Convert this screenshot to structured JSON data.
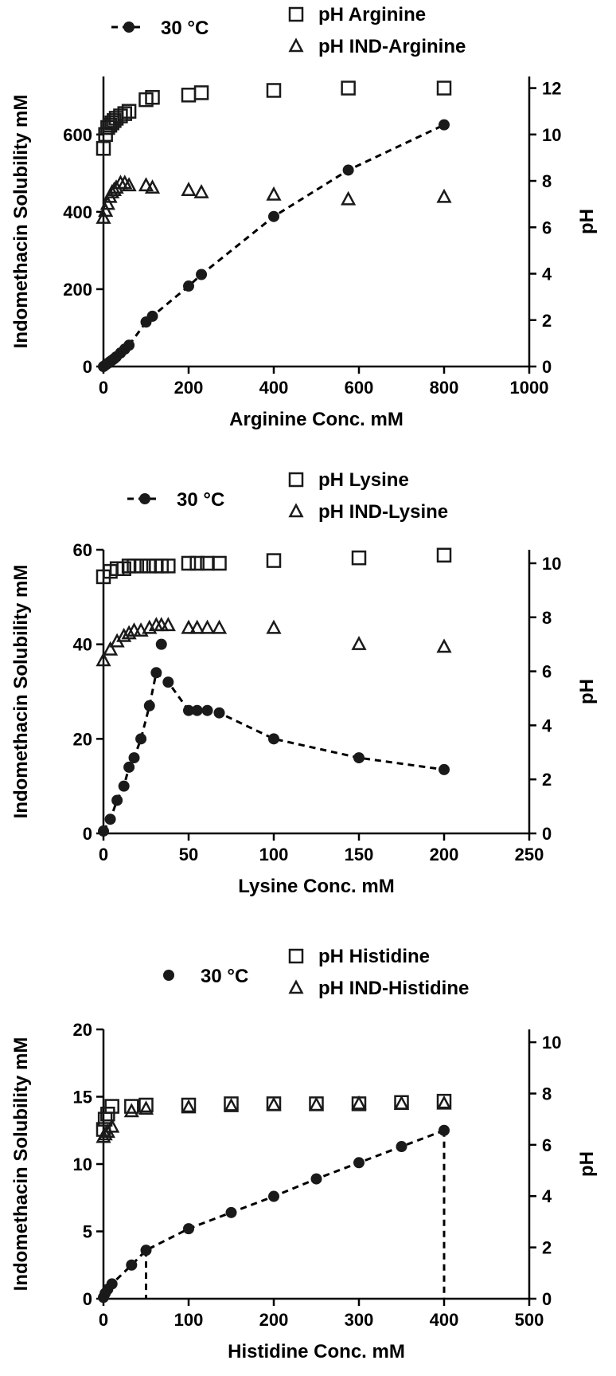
{
  "chart_data": [
    {
      "type": "scatter",
      "xlabel": "Arginine Conc. mM",
      "ylabel": "Indomethacin Solubility mM",
      "y2label": "pH",
      "xlim": [
        0,
        1000
      ],
      "ylim": [
        0,
        750
      ],
      "y2lim": [
        0,
        12.5
      ],
      "xticks": [
        "0",
        "200",
        "400",
        "600",
        "800",
        "1000"
      ],
      "yticks": [
        "0",
        "200",
        "400",
        "600"
      ],
      "y2ticks": [
        "0",
        "2",
        "4",
        "6",
        "8",
        "10",
        "12"
      ],
      "series": [
        {
          "name": "30 °C",
          "marker": "circle",
          "axis": "left",
          "fit_line": "dashed",
          "x": [
            0,
            5,
            10,
            15,
            20,
            25,
            30,
            40,
            50,
            60,
            100,
            115,
            200,
            230,
            400,
            575,
            800
          ],
          "y": [
            0,
            4,
            8,
            12,
            16,
            20,
            25,
            35,
            45,
            55,
            115,
            130,
            208,
            238,
            388,
            508,
            625
          ]
        },
        {
          "name": "pH Arginine",
          "marker": "square",
          "axis": "right",
          "x": [
            0,
            5,
            10,
            15,
            20,
            25,
            30,
            40,
            50,
            60,
            100,
            115,
            200,
            230,
            400,
            575,
            800
          ],
          "y": [
            9.4,
            10.0,
            10.3,
            10.4,
            10.5,
            10.6,
            10.7,
            10.8,
            10.9,
            11.0,
            11.5,
            11.6,
            11.7,
            11.8,
            11.9,
            12.0,
            12.0
          ]
        },
        {
          "name": "pH IND-Arginine",
          "marker": "triangle",
          "axis": "right",
          "x": [
            0,
            5,
            10,
            15,
            20,
            25,
            30,
            40,
            50,
            60,
            100,
            115,
            200,
            230,
            400,
            575,
            800
          ],
          "y": [
            6.4,
            6.7,
            7.0,
            7.3,
            7.5,
            7.6,
            7.7,
            7.9,
            7.9,
            7.8,
            7.8,
            7.7,
            7.6,
            7.5,
            7.4,
            7.2,
            7.3
          ]
        }
      ],
      "legend": {
        "markers": [
          "30 °C"
        ],
        "pH": [
          "pH Arginine",
          "pH IND-Arginine"
        ]
      }
    },
    {
      "type": "scatter",
      "xlabel": "Lysine Conc. mM",
      "ylabel": "Indomethacin Solubility mM",
      "y2label": "pH",
      "xlim": [
        0,
        250
      ],
      "ylim": [
        0,
        60
      ],
      "y2lim": [
        0,
        10.5
      ],
      "xticks": [
        "0",
        "50",
        "100",
        "150",
        "200",
        "250"
      ],
      "yticks": [
        "0",
        "20",
        "40",
        "60"
      ],
      "y2ticks": [
        "0",
        "2",
        "4",
        "6",
        "8",
        "10"
      ],
      "series": [
        {
          "name": "30 °C",
          "marker": "circle",
          "axis": "left",
          "fit_line": "dashed",
          "x": [
            0,
            4,
            8,
            12,
            15,
            18,
            22,
            27,
            31,
            34,
            38,
            50,
            55,
            61,
            68,
            100,
            150,
            200
          ],
          "y": [
            0.5,
            3,
            7,
            10,
            14,
            16,
            20,
            27,
            34,
            40,
            32,
            26,
            26,
            26,
            25.5,
            20,
            16,
            13.5
          ],
          "fit_y": [
            0.5,
            3,
            7,
            10,
            14,
            16,
            20,
            27,
            34,
            32,
            26,
            26,
            25.5,
            20,
            16,
            13.5
          ],
          "fit_x": [
            0,
            4,
            8,
            12,
            15,
            18,
            22,
            27,
            31,
            38,
            50,
            61,
            68,
            100,
            150,
            200
          ]
        },
        {
          "name": "pH Lysine",
          "marker": "square",
          "axis": "right",
          "x": [
            0,
            4,
            8,
            12,
            15,
            18,
            22,
            27,
            31,
            34,
            38,
            50,
            55,
            61,
            68,
            100,
            150,
            200
          ],
          "y": [
            9.5,
            9.7,
            9.8,
            9.8,
            9.9,
            9.9,
            9.9,
            9.9,
            9.9,
            9.9,
            9.9,
            10.0,
            10.0,
            10.0,
            10.0,
            10.1,
            10.2,
            10.3
          ],
          "fit_y": []
        },
        {
          "name": "pH IND-Lysine",
          "marker": "triangle",
          "axis": "right",
          "x": [
            0,
            4,
            8,
            12,
            15,
            18,
            22,
            27,
            31,
            34,
            38,
            50,
            55,
            61,
            68,
            100,
            150,
            200
          ],
          "y": [
            6.4,
            6.8,
            7.1,
            7.3,
            7.4,
            7.5,
            7.5,
            7.6,
            7.7,
            7.7,
            7.7,
            7.6,
            7.6,
            7.6,
            7.6,
            7.6,
            7.0,
            6.9
          ],
          "fit_y": []
        }
      ],
      "legend": {
        "markers": [
          "30 °C"
        ],
        "pH": [
          "pH Lysine",
          "pH IND-Lysine"
        ]
      }
    },
    {
      "type": "scatter",
      "xlabel": "Histidine Conc. mM",
      "ylabel": "Indomethacin Solubility mM",
      "y2label": "pH",
      "xlim": [
        0,
        500
      ],
      "ylim": [
        0,
        20
      ],
      "y2lim": [
        0,
        10.5
      ],
      "xticks": [
        "0",
        "100",
        "200",
        "300",
        "400",
        "500"
      ],
      "yticks": [
        "0",
        "5",
        "10",
        "15",
        "20"
      ],
      "y2ticks": [
        "0",
        "2",
        "4",
        "6",
        "8",
        "10"
      ],
      "series": [
        {
          "name": "30 °C",
          "marker": "circle",
          "axis": "left",
          "fit_line": "dashed",
          "x": [
            0,
            2,
            5,
            10,
            33,
            50,
            100,
            150,
            200,
            250,
            300,
            350,
            400
          ],
          "y": [
            0.1,
            0.4,
            0.7,
            1.1,
            2.5,
            3.6,
            5.2,
            6.4,
            7.6,
            8.9,
            10.1,
            11.3,
            12.5
          ]
        },
        {
          "name": "pH Histidine",
          "marker": "square",
          "axis": "right",
          "x": [
            0,
            2,
            5,
            10,
            33,
            50,
            100,
            150,
            200,
            250,
            300,
            350,
            400
          ],
          "y": [
            6.6,
            7.0,
            7.2,
            7.5,
            7.5,
            7.55,
            7.55,
            7.6,
            7.6,
            7.6,
            7.6,
            7.65,
            7.7
          ]
        },
        {
          "name": "pH IND-Histidine",
          "marker": "triangle",
          "axis": "right",
          "x": [
            0,
            2,
            5,
            10,
            33,
            50,
            100,
            150,
            200,
            250,
            300,
            350,
            400
          ],
          "y": [
            6.3,
            6.4,
            6.5,
            6.7,
            7.3,
            7.4,
            7.45,
            7.5,
            7.55,
            7.55,
            7.6,
            7.6,
            7.6
          ]
        }
      ],
      "drop_lines_x": [
        50,
        400
      ],
      "legend": {
        "markers": [
          "30 °C"
        ],
        "pH": [
          "pH Histidine",
          "pH IND-Histidine"
        ]
      }
    }
  ]
}
